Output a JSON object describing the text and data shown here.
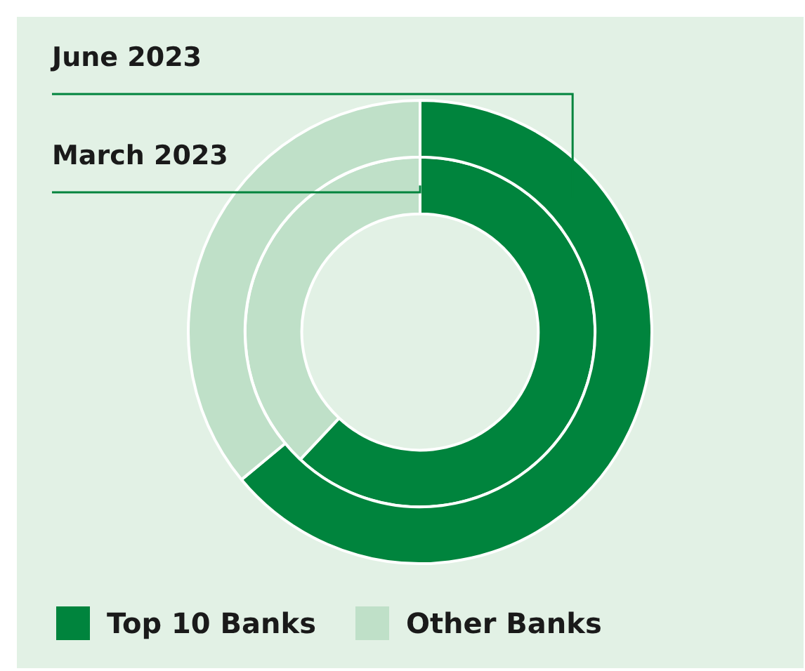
{
  "chart_data": {
    "type": "donut",
    "categories": [
      "Top 10 Banks",
      "Other Banks"
    ],
    "colors": [
      "#00843d",
      "#bfe0c8"
    ],
    "series": [
      {
        "name": "June 2023",
        "values": [
          64,
          36
        ]
      },
      {
        "name": "March 2023",
        "values": [
          62,
          38
        ]
      }
    ],
    "legend": "bottom left"
  }
}
